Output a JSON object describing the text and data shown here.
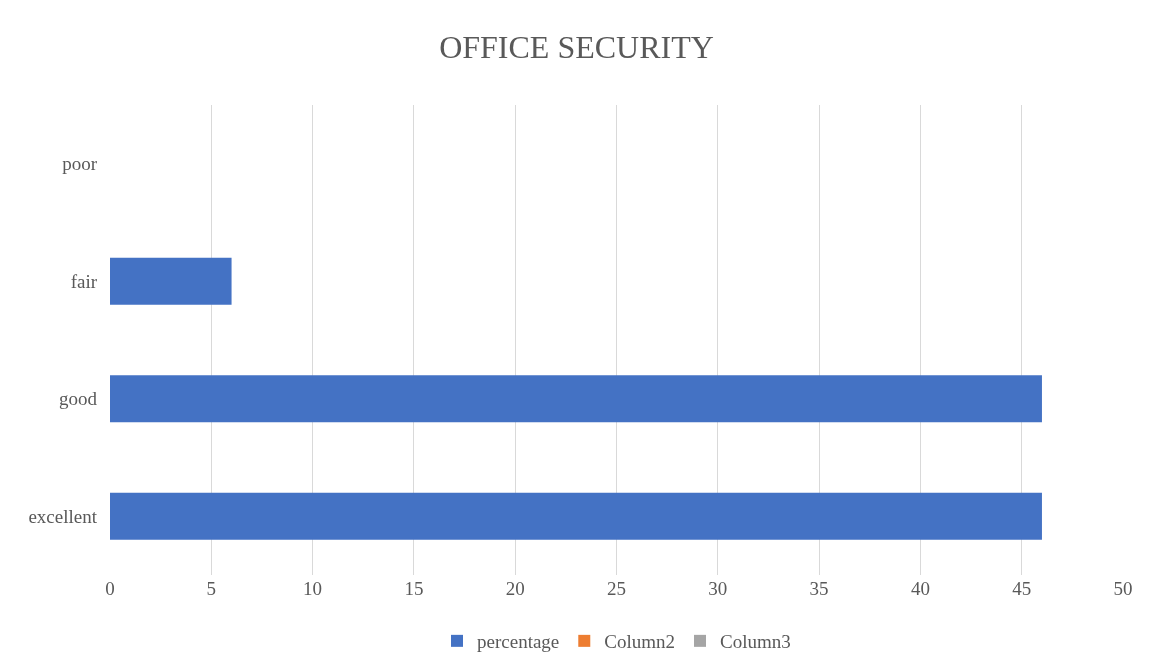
{
  "chart_data": {
    "type": "bar",
    "orientation": "horizontal",
    "title": "OFFICE SECURITY",
    "categories": [
      "poor",
      "fair",
      "good",
      "excellent"
    ],
    "series": [
      {
        "name": "percentage",
        "color": "#4472c4",
        "values": [
          0,
          6,
          46,
          46
        ]
      },
      {
        "name": "Column2",
        "color": "#ed7d31",
        "values": [
          null,
          null,
          null,
          null
        ]
      },
      {
        "name": "Column3",
        "color": "#a5a5a5",
        "values": [
          null,
          null,
          null,
          null
        ]
      }
    ],
    "xlim": [
      0,
      50
    ],
    "xticks": [
      0,
      5,
      10,
      15,
      20,
      25,
      30,
      35,
      40,
      45,
      50
    ],
    "grid": "x",
    "legend": "bottom"
  }
}
